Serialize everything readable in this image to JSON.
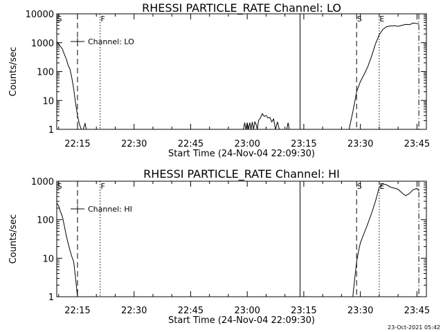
{
  "timestamp": "23-Oct-2021 05:42",
  "chart_data": [
    {
      "type": "line",
      "title": "RHESSI PARTICLE_RATE Channel: LO",
      "xlabel": "Start Time (24-Nov-04 22:09:30)",
      "ylabel": "Counts/sec",
      "yscale": "log",
      "xlim": [
        "22:09:30",
        "23:47:30"
      ],
      "ylim": [
        1,
        10000
      ],
      "x_ticks": [
        "22:15",
        "22:30",
        "22:45",
        "23:00",
        "23:15",
        "23:30",
        "23:45"
      ],
      "y_ticks": [
        "1",
        "10",
        "100",
        "1000",
        "10000"
      ],
      "legend": {
        "entries": [
          "Channel: LO"
        ],
        "position": "top-left"
      },
      "markers": [
        {
          "label": "S",
          "time": "22:09:30",
          "style": "dash-dot"
        },
        {
          "label": "",
          "time": "22:15:00",
          "style": "dashed"
        },
        {
          "label": "F",
          "time": "22:21:00",
          "style": "dotted"
        },
        {
          "label": "",
          "time": "23:14:00",
          "style": "solid"
        },
        {
          "label": "S",
          "time": "23:29:00",
          "style": "dashed"
        },
        {
          "label": "E",
          "time": "23:35:00",
          "style": "dotted"
        },
        {
          "label": "",
          "time": "23:45:30",
          "style": "dash-dot"
        }
      ],
      "series": [
        {
          "segments": [
            [
              [
                "22:09:30",
                1100
              ],
              [
                "22:10:00",
                900
              ],
              [
                "22:11:00",
                600
              ],
              [
                "22:11:30",
                400
              ],
              [
                "22:12:00",
                280
              ],
              [
                "22:12:30",
                170
              ],
              [
                "22:13:00",
                120
              ],
              [
                "22:13:30",
                60
              ],
              [
                "22:14:00",
                25
              ],
              [
                "22:14:30",
                8
              ],
              [
                "22:15:00",
                3
              ],
              [
                "22:15:30",
                1.5
              ],
              [
                "22:16:00",
                1
              ]
            ],
            [
              [
                "22:16:30",
                1
              ],
              [
                "22:17:00",
                1.6
              ],
              [
                "22:17:20",
                1
              ]
            ],
            [
              [
                "22:59:00",
                1
              ],
              [
                "22:59:20",
                1.7
              ],
              [
                "22:59:40",
                1
              ],
              [
                "23:00:00",
                1.7
              ],
              [
                "23:00:20",
                1
              ],
              [
                "23:00:40",
                1.7
              ],
              [
                "23:01:00",
                1
              ],
              [
                "23:01:20",
                1.8
              ],
              [
                "23:01:40",
                1
              ],
              [
                "23:02:00",
                1.8
              ],
              [
                "23:02:20",
                1.5
              ],
              [
                "23:02:40",
                1
              ],
              [
                "23:03:00",
                2
              ],
              [
                "23:03:30",
                2.5
              ],
              [
                "23:04:00",
                3.5
              ],
              [
                "23:04:30",
                2.8
              ],
              [
                "23:05:00",
                3
              ],
              [
                "23:05:30",
                2.5
              ],
              [
                "23:06:00",
                2.6
              ],
              [
                "23:06:30",
                1.8
              ],
              [
                "23:07:00",
                2.3
              ],
              [
                "23:07:30",
                1
              ],
              [
                "23:08:00",
                1.8
              ],
              [
                "23:08:30",
                1
              ]
            ],
            [
              [
                "23:10:30",
                1
              ],
              [
                "23:10:50",
                1.7
              ],
              [
                "23:11:10",
                1
              ]
            ],
            [
              [
                "23:27:00",
                1
              ],
              [
                "23:27:30",
                2
              ],
              [
                "23:28:00",
                4
              ],
              [
                "23:28:30",
                9
              ],
              [
                "23:29:00",
                20
              ],
              [
                "23:30:00",
                45
              ],
              [
                "23:31:00",
                80
              ],
              [
                "23:32:00",
                150
              ],
              [
                "23:33:00",
                350
              ],
              [
                "23:34:00",
                900
              ],
              [
                "23:35:00",
                1900
              ],
              [
                "23:36:00",
                2900
              ],
              [
                "23:37:00",
                3600
              ],
              [
                "23:38:00",
                3800
              ],
              [
                "23:39:00",
                3900
              ],
              [
                "23:40:00",
                3700
              ],
              [
                "23:41:00",
                4000
              ],
              [
                "23:42:00",
                4300
              ],
              [
                "23:43:00",
                4200
              ],
              [
                "23:44:00",
                4800
              ],
              [
                "23:45:00",
                4600
              ],
              [
                "23:45:30",
                4500
              ]
            ]
          ]
        }
      ]
    },
    {
      "type": "line",
      "title": "RHESSI PARTICLE_RATE Channel: HI",
      "xlabel": "Start Time (24-Nov-04 22:09:30)",
      "ylabel": "Counts/sec",
      "yscale": "log",
      "xlim": [
        "22:09:30",
        "23:47:30"
      ],
      "ylim": [
        1,
        1000
      ],
      "x_ticks": [
        "22:15",
        "22:30",
        "22:45",
        "23:00",
        "23:15",
        "23:30",
        "23:45"
      ],
      "y_ticks": [
        "1",
        "10",
        "100",
        "1000"
      ],
      "legend": {
        "entries": [
          "Channel: HI"
        ],
        "position": "top-left"
      },
      "markers": [
        {
          "label": "S",
          "time": "22:09:30",
          "style": "dash-dot"
        },
        {
          "label": "",
          "time": "22:15:00",
          "style": "dashed"
        },
        {
          "label": "F",
          "time": "22:21:00",
          "style": "dotted"
        },
        {
          "label": "",
          "time": "23:14:00",
          "style": "solid"
        },
        {
          "label": "S",
          "time": "23:29:00",
          "style": "dashed"
        },
        {
          "label": "E",
          "time": "23:35:00",
          "style": "dotted"
        },
        {
          "label": "",
          "time": "23:45:30",
          "style": "dash-dot"
        }
      ],
      "series": [
        {
          "segments": [
            [
              [
                "22:09:30",
                270
              ],
              [
                "22:10:00",
                230
              ],
              [
                "22:10:30",
                160
              ],
              [
                "22:11:00",
                120
              ],
              [
                "22:11:30",
                70
              ],
              [
                "22:12:00",
                40
              ],
              [
                "22:12:30",
                25
              ],
              [
                "22:13:00",
                16
              ],
              [
                "22:13:30",
                11
              ],
              [
                "22:14:00",
                8
              ],
              [
                "22:14:30",
                3
              ],
              [
                "22:15:00",
                1
              ]
            ],
            [
              [
                "23:28:00",
                1
              ],
              [
                "23:28:30",
                3
              ],
              [
                "23:29:00",
                8
              ],
              [
                "23:29:30",
                15
              ],
              [
                "23:30:00",
                25
              ],
              [
                "23:31:00",
                45
              ],
              [
                "23:32:00",
                80
              ],
              [
                "23:33:00",
                150
              ],
              [
                "23:34:00",
                300
              ],
              [
                "23:35:00",
                700
              ],
              [
                "23:36:00",
                850
              ],
              [
                "23:37:00",
                800
              ],
              [
                "23:38:00",
                700
              ],
              [
                "23:39:00",
                660
              ],
              [
                "23:40:00",
                620
              ],
              [
                "23:41:00",
                500
              ],
              [
                "23:42:00",
                420
              ],
              [
                "23:43:00",
                480
              ],
              [
                "23:44:00",
                600
              ],
              [
                "23:45:00",
                650
              ],
              [
                "23:45:30",
                560
              ]
            ]
          ]
        }
      ]
    }
  ]
}
